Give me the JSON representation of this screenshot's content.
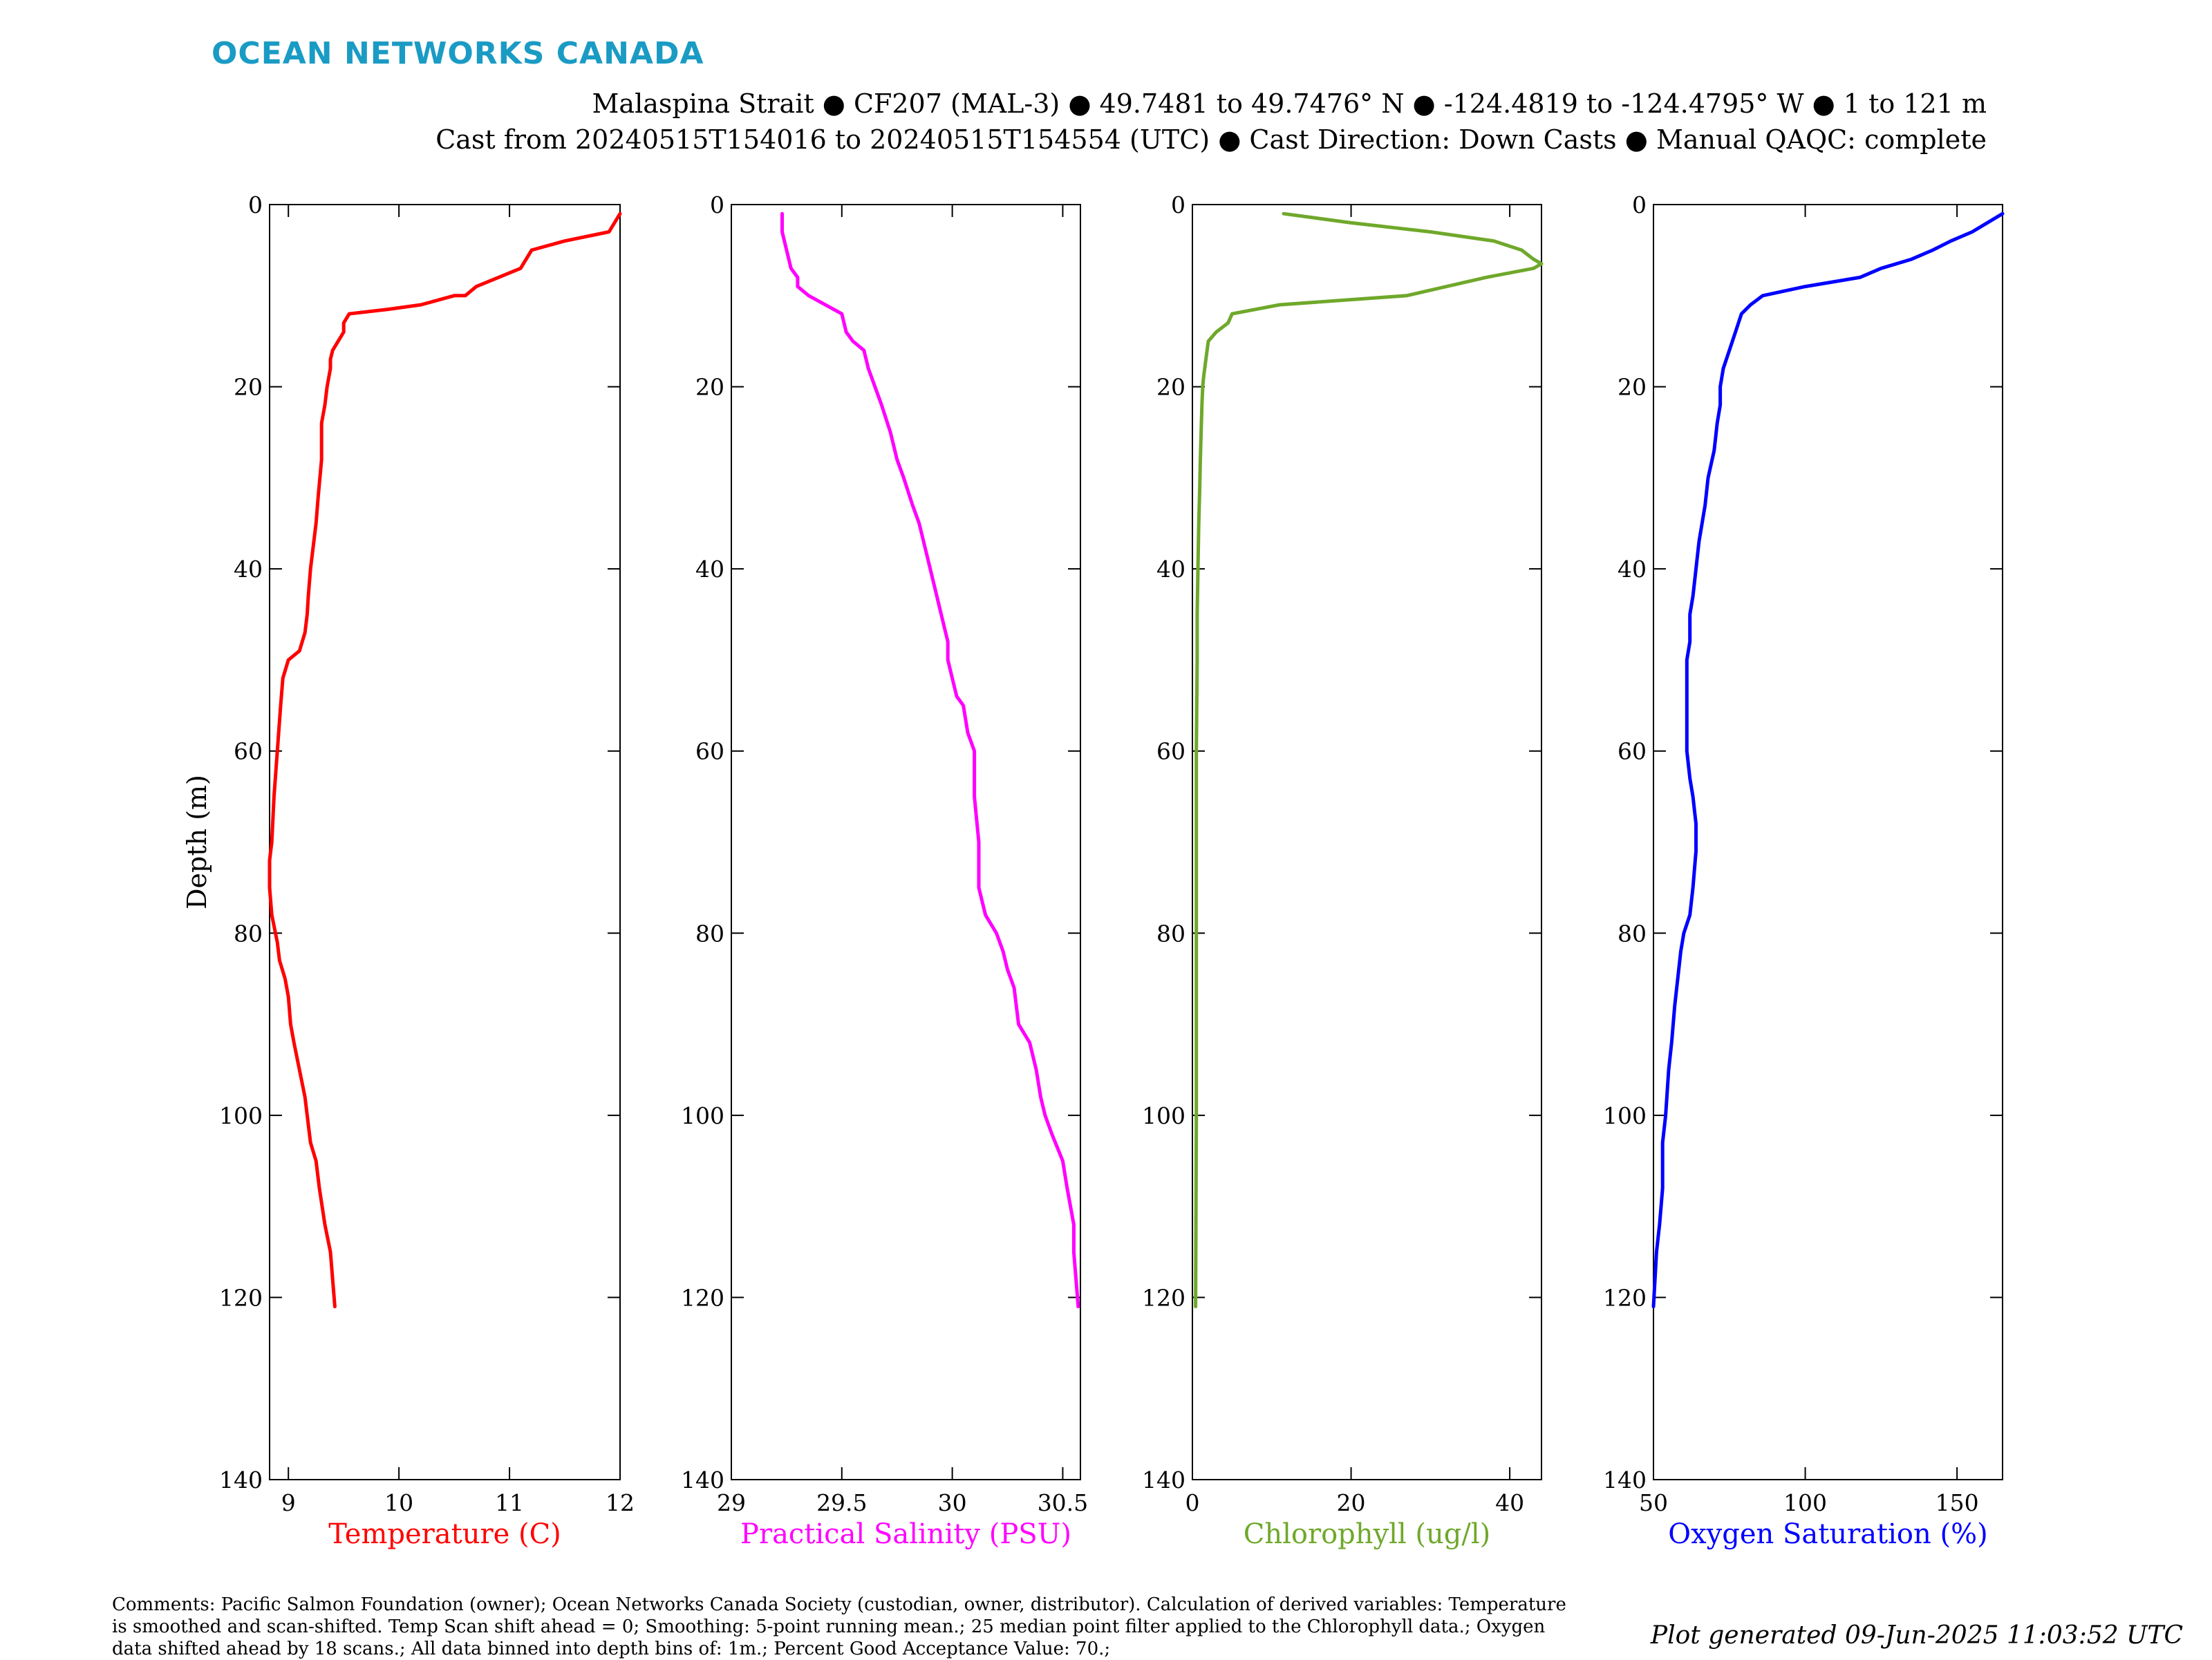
{
  "header": {
    "logo_text": "OCEAN NETWORKS CANADA",
    "title_line1": "Malaspina Strait ● CF207 (MAL-3) ● 49.7481 to 49.7476° N ● -124.4819 to -124.4795° W ● 1 to 121 m",
    "title_line2": "Cast from 20240515T154016 to 20240515T154554 (UTC) ● Cast Direction: Down Casts ● Manual QAQC: complete"
  },
  "footer": {
    "comments": "Comments: Pacific Salmon Foundation (owner); Ocean Networks Canada Society (custodian, owner, distributor). Calculation of derived variables: Temperature is smoothed and scan-shifted. Temp Scan shift ahead = 0; Smoothing: 5-point running mean.; 25 median point filter applied to the Chlorophyll data.; Oxygen data shifted ahead by 18 scans.; All data binned into depth bins of: 1m.; Percent Good Acceptance Value: 70.;",
    "generated": "Plot generated 09-Jun-2025 11:03:52 UTC"
  },
  "colors": {
    "temperature": "#ff0000",
    "salinity": "#ff00ff",
    "chlorophyll": "#6fa82b",
    "oxygen": "#0000ff"
  },
  "chart_data": [
    {
      "type": "line",
      "xlabel": "Temperature (C)",
      "ylabel": "Depth (m)",
      "xlim": [
        8.83,
        12
      ],
      "ylim": [
        0,
        140
      ],
      "y_reversed": true,
      "xticks": [
        "9",
        "10",
        "11",
        "12"
      ],
      "yticks": [
        "0",
        "20",
        "40",
        "60",
        "80",
        "100",
        "120",
        "140"
      ],
      "grid": false,
      "series": [
        {
          "color": "#ff0000",
          "x": [
            12.0,
            11.9,
            11.5,
            11.2,
            11.1,
            10.7,
            10.6,
            10.5,
            10.2,
            9.9,
            9.55,
            9.5,
            9.5,
            9.45,
            9.4,
            9.38,
            9.38,
            9.35,
            9.33,
            9.3,
            9.3,
            9.27,
            9.25,
            9.2,
            9.18,
            9.17,
            9.15,
            9.1,
            9.0,
            8.95,
            8.93,
            8.9,
            8.87,
            8.85,
            8.83,
            8.83,
            8.85,
            8.9,
            8.92,
            8.97,
            9.0,
            9.02,
            9.05,
            9.1,
            9.15,
            9.17,
            9.2,
            9.25,
            9.28,
            9.33,
            9.38,
            9.42
          ],
          "y": [
            1,
            3,
            4,
            5,
            7,
            9,
            10,
            10,
            11,
            11.5,
            12,
            13,
            14,
            15,
            16,
            17,
            18,
            20,
            22,
            24,
            28,
            32,
            35,
            40,
            43,
            45,
            47,
            49,
            50,
            52,
            55,
            60,
            65,
            70,
            72,
            75,
            78,
            81,
            83,
            85,
            87,
            90,
            92,
            95,
            98,
            100,
            103,
            105,
            108,
            112,
            115,
            121
          ]
        }
      ]
    },
    {
      "type": "line",
      "xlabel": "Practical Salinity (PSU)",
      "ylabel": "",
      "xlim": [
        29,
        30.58
      ],
      "ylim": [
        0,
        140
      ],
      "y_reversed": true,
      "xticks": [
        "29",
        "29.5",
        "30",
        "30.5"
      ],
      "yticks": [
        "0",
        "20",
        "40",
        "60",
        "80",
        "100",
        "120",
        "140"
      ],
      "grid": false,
      "series": [
        {
          "color": "#ff00ff",
          "x": [
            29.23,
            29.23,
            29.25,
            29.27,
            29.3,
            29.3,
            29.35,
            29.5,
            29.52,
            29.55,
            29.6,
            29.62,
            29.65,
            29.68,
            29.72,
            29.75,
            29.78,
            29.82,
            29.85,
            29.88,
            29.9,
            29.92,
            29.95,
            29.98,
            29.98,
            30.0,
            30.02,
            30.05,
            30.07,
            30.1,
            30.1,
            30.12,
            30.12,
            30.15,
            30.2,
            30.23,
            30.25,
            30.28,
            30.3,
            30.35,
            30.38,
            30.4,
            30.42,
            30.45,
            30.5,
            30.52,
            30.55,
            30.55,
            30.57
          ],
          "y": [
            1,
            3,
            5,
            7,
            8,
            9,
            10,
            12,
            14,
            15,
            16,
            18,
            20,
            22,
            25,
            28,
            30,
            33,
            35,
            38,
            40,
            42,
            45,
            48,
            50,
            52,
            54,
            55,
            58,
            60,
            65,
            70,
            75,
            78,
            80,
            82,
            84,
            86,
            90,
            92,
            95,
            98,
            100,
            102,
            105,
            108,
            112,
            115,
            121
          ]
        }
      ]
    },
    {
      "type": "line",
      "xlabel": "Chlorophyll (ug/l)",
      "ylabel": "",
      "xlim": [
        0,
        44
      ],
      "ylim": [
        0,
        140
      ],
      "y_reversed": true,
      "xticks": [
        "0",
        "20",
        "40"
      ],
      "yticks": [
        "0",
        "20",
        "40",
        "60",
        "80",
        "100",
        "120",
        "140"
      ],
      "grid": false,
      "series": [
        {
          "color": "#6fa82b",
          "x": [
            11.5,
            20,
            30,
            38,
            41.5,
            43,
            44,
            43,
            37,
            27,
            11,
            5,
            4.5,
            3,
            2,
            1.7,
            1.4,
            1.3,
            1.2,
            1.1,
            1.0,
            0.9,
            0.8,
            0.7,
            0.6,
            0.6,
            0.5,
            0.5,
            0.5,
            0.4
          ],
          "y": [
            1,
            2,
            3,
            4,
            5,
            6,
            6.5,
            7,
            8,
            10,
            11,
            12,
            13,
            14,
            15,
            17,
            19,
            20,
            22,
            25,
            28,
            32,
            35,
            40,
            45,
            50,
            60,
            80,
            100,
            121
          ]
        }
      ]
    },
    {
      "type": "line",
      "xlabel": "Oxygen Saturation (%)",
      "ylabel": "",
      "xlim": [
        50,
        165
      ],
      "ylim": [
        0,
        140
      ],
      "y_reversed": true,
      "xticks": [
        "50",
        "100",
        "150"
      ],
      "yticks": [
        "0",
        "20",
        "40",
        "60",
        "80",
        "100",
        "120",
        "140"
      ],
      "grid": false,
      "series": [
        {
          "color": "#0000ff",
          "x": [
            165,
            155,
            148,
            142,
            135,
            125,
            118,
            100,
            86,
            82,
            79,
            77,
            75,
            73,
            72,
            72,
            71,
            70,
            68,
            67,
            66,
            65,
            64,
            63,
            62,
            62,
            61,
            61,
            61,
            62,
            63,
            64,
            64,
            63,
            62,
            60,
            59,
            58,
            57,
            56,
            55,
            54,
            53,
            53,
            52,
            51,
            50
          ],
          "y": [
            1,
            3,
            4,
            5,
            6,
            7,
            8,
            9,
            10,
            11,
            12,
            14,
            16,
            18,
            20,
            22,
            24,
            27,
            30,
            33,
            35,
            37,
            40,
            43,
            45,
            48,
            50,
            55,
            60,
            63,
            65,
            68,
            71,
            75,
            78,
            80,
            82,
            85,
            88,
            92,
            95,
            100,
            103,
            108,
            112,
            115,
            121
          ]
        }
      ]
    }
  ]
}
